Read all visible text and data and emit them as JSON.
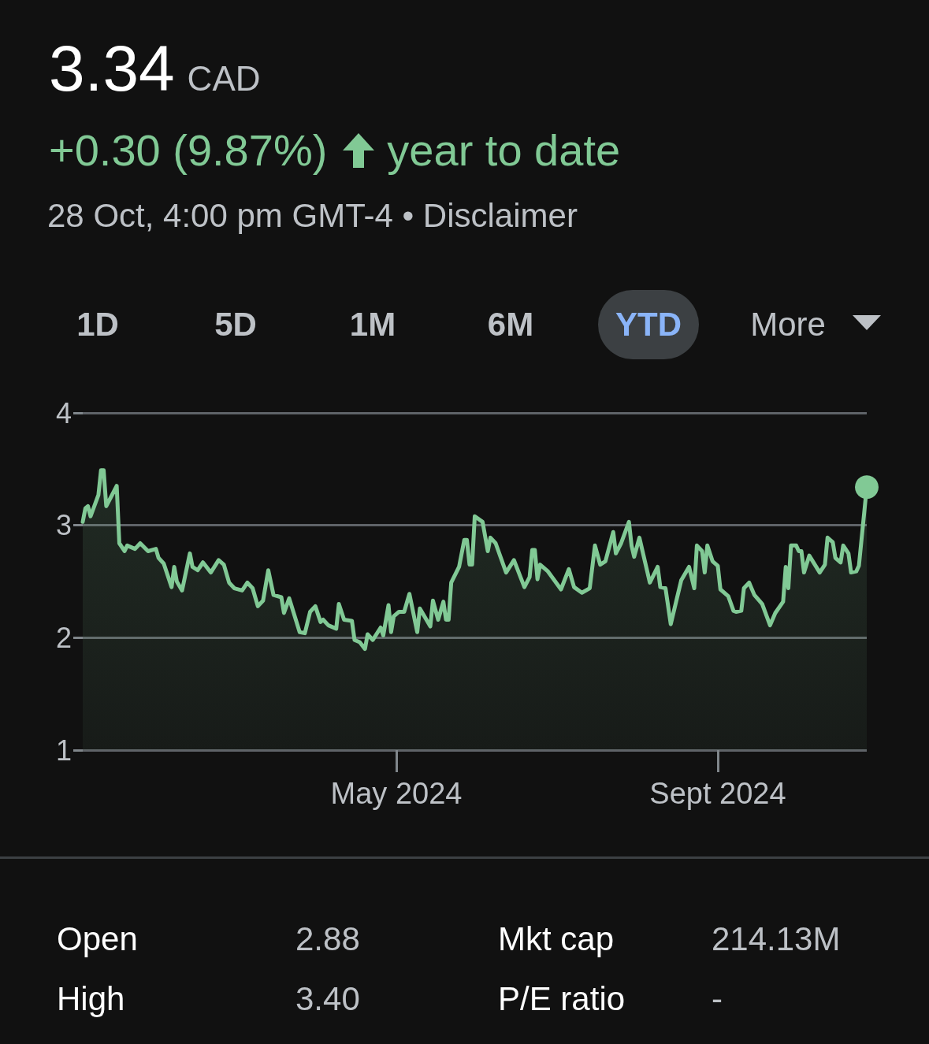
{
  "chart_data": {
    "type": "area",
    "title": "3.34",
    "subtitle": "+0.30 (9.87%)",
    "annotations": [
      "CAD",
      "year to date",
      "28 Oct, 4:00 pm GMT-4 • Disclaimer",
      "1D",
      "5D",
      "1M",
      "6M",
      "YTD",
      "More",
      "Open",
      "2.88",
      "Mkt cap",
      "214.13M",
      "High",
      "3.40",
      "P/E ratio",
      "-"
    ],
    "x": [
      "2024-01-02",
      "2024-01-03",
      "2024-01-04",
      "2024-01-05",
      "2024-01-08",
      "2024-01-09",
      "2024-01-10",
      "2024-01-11",
      "2024-01-15",
      "2024-01-16",
      "2024-01-18",
      "2024-01-19",
      "2024-01-22",
      "2024-01-24",
      "2024-01-27",
      "2024-01-30",
      "2024-01-31",
      "2024-02-02",
      "2024-02-05",
      "2024-02-06",
      "2024-02-07",
      "2024-02-09",
      "2024-02-12",
      "2024-02-13",
      "2024-02-15",
      "2024-02-17",
      "2024-02-20",
      "2024-02-23",
      "2024-02-25",
      "2024-02-27",
      "2024-02-29",
      "2024-03-03",
      "2024-03-05",
      "2024-03-07",
      "2024-03-09",
      "2024-03-11",
      "2024-03-13",
      "2024-03-15",
      "2024-03-18",
      "2024-03-19",
      "2024-03-21",
      "2024-03-25",
      "2024-03-27",
      "2024-03-29",
      "2024-03-31",
      "2024-04-02",
      "2024-04-03",
      "2024-04-05",
      "2024-04-08",
      "2024-04-09",
      "2024-04-11",
      "2024-04-14",
      "2024-04-15",
      "2024-04-17",
      "2024-04-19",
      "2024-04-20",
      "2024-04-22",
      "2024-04-25",
      "2024-04-26",
      "2024-04-28",
      "2024-04-29",
      "2024-04-30",
      "2024-05-02",
      "2024-05-04",
      "2024-05-06",
      "2024-05-09",
      "2024-05-10",
      "2024-05-14",
      "2024-05-15",
      "2024-05-17",
      "2024-05-19",
      "2024-05-20",
      "2024-05-21",
      "2024-05-22",
      "2024-05-25",
      "2024-05-27",
      "2024-05-28",
      "2024-05-29",
      "2024-05-30",
      "2024-05-31",
      "2024-06-03",
      "2024-06-05",
      "2024-06-06",
      "2024-06-08",
      "2024-06-10",
      "2024-06-12",
      "2024-06-15",
      "2024-06-19",
      "2024-06-21",
      "2024-06-22",
      "2024-06-23",
      "2024-06-24",
      "2024-06-25",
      "2024-06-28",
      "2024-07-03",
      "2024-07-06",
      "2024-07-08",
      "2024-07-11",
      "2024-07-14",
      "2024-07-16",
      "2024-07-18",
      "2024-07-20",
      "2024-07-23",
      "2024-07-24",
      "2024-07-26",
      "2024-07-29",
      "2024-07-30",
      "2024-07-31",
      "2024-08-02",
      "2024-08-06",
      "2024-08-09",
      "2024-08-10",
      "2024-08-12",
      "2024-08-14",
      "2024-08-18",
      "2024-08-21",
      "2024-08-23",
      "2024-08-24",
      "2024-08-26",
      "2024-08-27",
      "2024-08-28",
      "2024-08-30",
      "2024-09-01",
      "2024-09-02",
      "2024-09-05",
      "2024-09-07",
      "2024-09-08",
      "2024-09-10",
      "2024-09-11",
      "2024-09-13",
      "2024-09-15",
      "2024-09-18",
      "2024-09-21",
      "2024-09-23",
      "2024-09-26",
      "2024-09-27",
      "2024-09-28",
      "2024-09-29",
      "2024-10-01",
      "2024-10-02",
      "2024-10-03",
      "2024-10-04",
      "2024-10-06",
      "2024-10-10",
      "2024-10-12",
      "2024-10-13",
      "2024-10-15",
      "2024-10-16",
      "2024-10-18",
      "2024-10-19",
      "2024-10-21",
      "2024-10-22",
      "2024-10-24",
      "2024-10-25",
      "2024-10-28"
    ],
    "series": [
      {
        "color": "#81c995",
        "values": [
          3.03,
          3.15,
          3.17,
          3.08,
          3.27,
          3.49,
          3.49,
          3.17,
          3.35,
          2.84,
          2.77,
          2.82,
          2.79,
          2.84,
          2.77,
          2.79,
          2.71,
          2.66,
          2.45,
          2.63,
          2.5,
          2.42,
          2.75,
          2.63,
          2.6,
          2.67,
          2.58,
          2.69,
          2.65,
          2.49,
          2.44,
          2.42,
          2.49,
          2.44,
          2.28,
          2.33,
          2.6,
          2.38,
          2.36,
          2.22,
          2.35,
          2.05,
          2.04,
          2.23,
          2.28,
          2.14,
          2.16,
          2.11,
          2.08,
          2.3,
          2.16,
          2.15,
          1.98,
          1.96,
          1.9,
          2.03,
          1.98,
          2.09,
          2.02,
          2.29,
          2.05,
          2.19,
          2.23,
          2.23,
          2.39,
          2.05,
          2.26,
          2.1,
          2.33,
          2.16,
          2.32,
          2.16,
          2.16,
          2.49,
          2.63,
          2.87,
          2.87,
          2.65,
          2.65,
          3.08,
          3.03,
          2.77,
          2.89,
          2.84,
          2.71,
          2.58,
          2.69,
          2.45,
          2.54,
          2.78,
          2.78,
          2.52,
          2.65,
          2.59,
          2.43,
          2.61,
          2.45,
          2.4,
          2.44,
          2.82,
          2.65,
          2.68,
          2.94,
          2.75,
          2.84,
          3.03,
          2.82,
          2.72,
          2.89,
          2.49,
          2.63,
          2.45,
          2.44,
          2.12,
          2.51,
          2.63,
          2.44,
          2.82,
          2.77,
          2.58,
          2.82,
          2.68,
          2.64,
          2.43,
          2.37,
          2.24,
          2.23,
          2.24,
          2.44,
          2.49,
          2.38,
          2.3,
          2.11,
          2.22,
          2.32,
          2.63,
          2.44,
          2.82,
          2.82,
          2.77,
          2.77,
          2.58,
          2.73,
          2.58,
          2.65,
          2.89,
          2.85,
          2.71,
          2.67,
          2.82,
          2.75,
          2.58,
          2.59,
          2.64,
          3.34
        ]
      }
    ],
    "xlim": [
      "2024-01-02",
      "2024-10-28"
    ],
    "xticks": [
      {
        "value": "2024-05-01",
        "label": "May 2024"
      },
      {
        "value": "2024-09-01",
        "label": "Sept 2024"
      }
    ],
    "ylim": [
      1,
      4
    ],
    "yticks": [
      1,
      2,
      3,
      4
    ],
    "grid": "y"
  }
}
